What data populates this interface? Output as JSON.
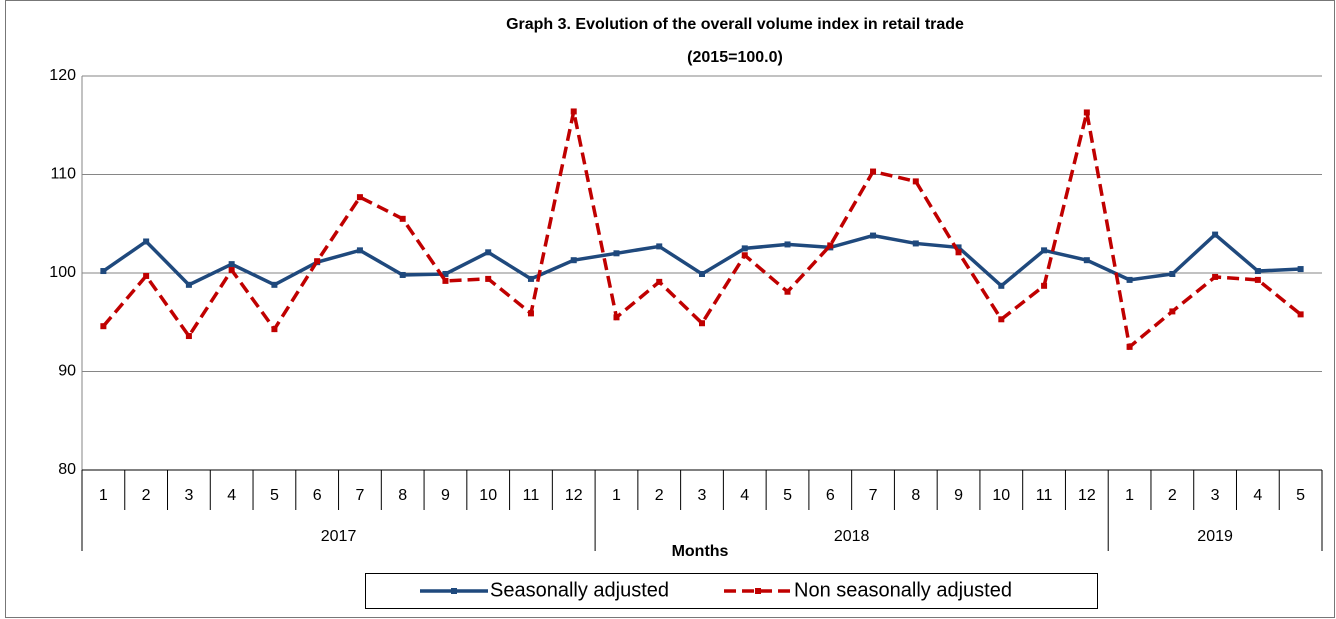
{
  "chart_data": {
    "type": "line",
    "title": [
      "Graph 3. Evolution of the overall  volume index in retail trade",
      "(2015=100.0)"
    ],
    "x_label": "Months",
    "categories": [
      "1",
      "2",
      "3",
      "4",
      "5",
      "6",
      "7",
      "8",
      "9",
      "10",
      "11",
      "12",
      "1",
      "2",
      "3",
      "4",
      "5",
      "6",
      "7",
      "8",
      "9",
      "10",
      "11",
      "12",
      "1",
      "2",
      "3",
      "4",
      "5"
    ],
    "x_groups": [
      "2017",
      "2018",
      "2019"
    ],
    "series": [
      {
        "name": "Seasonally adjusted",
        "color": "#1f497d",
        "dash": "solid",
        "values": [
          100.2,
          103.2,
          98.8,
          100.9,
          98.8,
          101.1,
          102.3,
          99.8,
          99.9,
          102.1,
          99.4,
          101.3,
          102.0,
          102.7,
          99.9,
          102.5,
          102.9,
          102.6,
          103.8,
          103.0,
          102.6,
          98.7,
          102.3,
          101.3,
          99.3,
          99.9,
          103.9,
          100.2,
          100.4
        ]
      },
      {
        "name": "Non seasonally adjusted",
        "color": "#c00000",
        "dash": "dashed",
        "values": [
          94.6,
          99.7,
          93.6,
          100.3,
          94.3,
          101.2,
          107.7,
          105.5,
          99.2,
          99.4,
          95.9,
          116.4,
          95.5,
          99.1,
          94.9,
          101.8,
          98.1,
          102.8,
          110.3,
          109.3,
          102.1,
          95.3,
          98.7,
          116.3,
          92.5,
          96.1,
          99.6,
          99.3,
          95.8
        ]
      }
    ],
    "ylim": [
      80,
      120
    ],
    "yticks": [
      80,
      90,
      100,
      110,
      120
    ],
    "grid": true,
    "legend": "bottom"
  }
}
